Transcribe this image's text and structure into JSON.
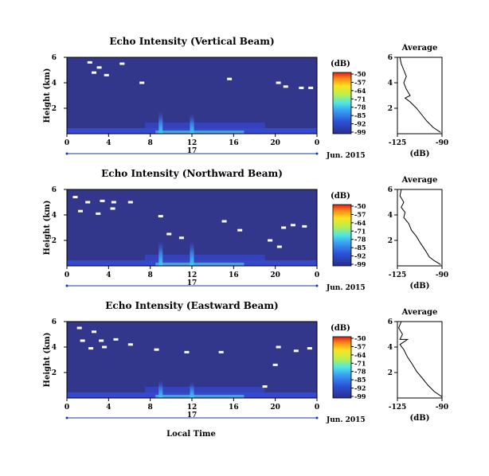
{
  "figure": {
    "x_label": "Local Time",
    "date_label": "Jun. 2015",
    "day_label": "17",
    "colors": {
      "background": "#33378c",
      "gap": "#ffffff",
      "near_ground": "#3548d0",
      "echo_mid": "#3a7fe6",
      "echo_high": "#62e1ea"
    }
  },
  "chart_data": [
    {
      "type": "heatmap",
      "title": "Echo Intensity (Vertical Beam)",
      "ylabel": "Height (km)",
      "x_ticks": [
        "0",
        "4",
        "8",
        "12",
        "16",
        "20",
        "0"
      ],
      "xlim": [
        0,
        24
      ],
      "y_ticks": [
        "6",
        "4",
        "2"
      ],
      "ylim": [
        0,
        6
      ],
      "colorbar": {
        "label": "(dB)",
        "ticks": [
          "-50",
          "-57",
          "-64",
          "-71",
          "-78",
          "-85",
          "-92",
          "-99"
        ],
        "range": [
          -99,
          -50
        ]
      },
      "average_profile": {
        "title": "Average",
        "xlabel": "(dB)",
        "x_ticks": [
          "-125",
          "-90"
        ],
        "y_ticks": [
          "6",
          "4",
          "2"
        ],
        "points": [
          [
            -123,
            6.0
          ],
          [
            -122,
            5.5
          ],
          [
            -120,
            5.0
          ],
          [
            -118,
            4.5
          ],
          [
            -120,
            4.0
          ],
          [
            -118,
            3.5
          ],
          [
            -115,
            3.0
          ],
          [
            -119,
            2.8
          ],
          [
            -115,
            2.5
          ],
          [
            -110,
            2.0
          ],
          [
            -106,
            1.5
          ],
          [
            -102,
            1.0
          ],
          [
            -97,
            0.5
          ],
          [
            -91,
            0.1
          ]
        ]
      },
      "gaps": [
        [
          2.2,
          5.6
        ],
        [
          3.1,
          5.2
        ],
        [
          2.6,
          4.8
        ],
        [
          3.8,
          4.6
        ],
        [
          5.3,
          5.5
        ],
        [
          7.2,
          4.0
        ],
        [
          15.6,
          4.3
        ],
        [
          20.3,
          4.0
        ],
        [
          21.0,
          3.7
        ],
        [
          22.5,
          3.6
        ],
        [
          23.4,
          3.6
        ]
      ],
      "echo_peaks": [
        [
          9.0,
          1.8
        ],
        [
          12.0,
          1.6
        ]
      ]
    },
    {
      "type": "heatmap",
      "title": "Echo Intensity (Northward Beam)",
      "ylabel": "Height (km)",
      "x_ticks": [
        "0",
        "4",
        "8",
        "12",
        "16",
        "20",
        "0"
      ],
      "xlim": [
        0,
        24
      ],
      "y_ticks": [
        "6",
        "4",
        "2"
      ],
      "ylim": [
        0,
        6
      ],
      "colorbar": {
        "label": "(dB)",
        "ticks": [
          "-50",
          "-57",
          "-64",
          "-71",
          "-78",
          "-85",
          "-92",
          "-99"
        ],
        "range": [
          -99,
          -50
        ]
      },
      "average_profile": {
        "title": "Average",
        "xlabel": "(dB)",
        "x_ticks": [
          "-125",
          "-90"
        ],
        "y_ticks": [
          "6",
          "4",
          "2"
        ],
        "points": [
          [
            -122,
            6.0
          ],
          [
            -123,
            5.5
          ],
          [
            -120,
            5.0
          ],
          [
            -122,
            4.6
          ],
          [
            -119,
            4.2
          ],
          [
            -120,
            3.8
          ],
          [
            -116,
            3.3
          ],
          [
            -114,
            2.8
          ],
          [
            -110,
            2.3
          ],
          [
            -107,
            1.8
          ],
          [
            -103,
            1.2
          ],
          [
            -100,
            0.7
          ],
          [
            -96,
            0.4
          ],
          [
            -91,
            0.1
          ]
        ]
      },
      "gaps": [
        [
          0.8,
          5.4
        ],
        [
          2.0,
          5.0
        ],
        [
          3.4,
          5.1
        ],
        [
          4.5,
          5.0
        ],
        [
          1.3,
          4.3
        ],
        [
          3.0,
          4.1
        ],
        [
          4.4,
          4.5
        ],
        [
          6.1,
          5.0
        ],
        [
          9.0,
          3.9
        ],
        [
          9.8,
          2.5
        ],
        [
          11.0,
          2.2
        ],
        [
          15.1,
          3.5
        ],
        [
          16.6,
          2.8
        ],
        [
          19.5,
          2.0
        ],
        [
          20.8,
          3.0
        ],
        [
          21.7,
          3.2
        ],
        [
          22.8,
          3.1
        ],
        [
          20.4,
          1.5
        ]
      ],
      "echo_peaks": [
        [
          9.0,
          2.0
        ],
        [
          12.0,
          2.0
        ]
      ]
    },
    {
      "type": "heatmap",
      "title": "Echo Intensity (Eastward Beam)",
      "ylabel": "Height (km)",
      "x_ticks": [
        "0",
        "4",
        "8",
        "12",
        "16",
        "20",
        "0"
      ],
      "xlim": [
        0,
        24
      ],
      "y_ticks": [
        "6",
        "4",
        "2"
      ],
      "ylim": [
        0,
        6
      ],
      "colorbar": {
        "label": "(dB)",
        "ticks": [
          "-50",
          "-57",
          "-64",
          "-71",
          "-78",
          "-85",
          "-92",
          "-99"
        ],
        "range": [
          -99,
          -50
        ]
      },
      "average_profile": {
        "title": "Average",
        "xlabel": "(dB)",
        "x_ticks": [
          "-125",
          "-90"
        ],
        "y_ticks": [
          "6",
          "4",
          "2"
        ],
        "points": [
          [
            -122,
            6.0
          ],
          [
            -124,
            5.5
          ],
          [
            -121,
            5.0
          ],
          [
            -123,
            4.6
          ],
          [
            -117,
            4.6
          ],
          [
            -123,
            4.2
          ],
          [
            -120,
            3.8
          ],
          [
            -117,
            3.2
          ],
          [
            -113,
            2.6
          ],
          [
            -110,
            2.1
          ],
          [
            -105,
            1.5
          ],
          [
            -101,
            1.0
          ],
          [
            -96,
            0.5
          ],
          [
            -90,
            0.1
          ]
        ]
      },
      "gaps": [
        [
          1.2,
          5.5
        ],
        [
          2.6,
          5.2
        ],
        [
          1.5,
          4.5
        ],
        [
          3.3,
          4.5
        ],
        [
          4.7,
          4.6
        ],
        [
          2.3,
          3.9
        ],
        [
          3.6,
          4.0
        ],
        [
          6.1,
          4.2
        ],
        [
          8.6,
          3.8
        ],
        [
          11.5,
          3.6
        ],
        [
          14.8,
          3.6
        ],
        [
          20.3,
          4.0
        ],
        [
          22.0,
          3.7
        ],
        [
          23.3,
          3.9
        ],
        [
          20.0,
          2.6
        ],
        [
          19.0,
          0.9
        ]
      ],
      "echo_peaks": [
        [
          9.0,
          1.4
        ],
        [
          12.0,
          1.3
        ]
      ]
    }
  ]
}
